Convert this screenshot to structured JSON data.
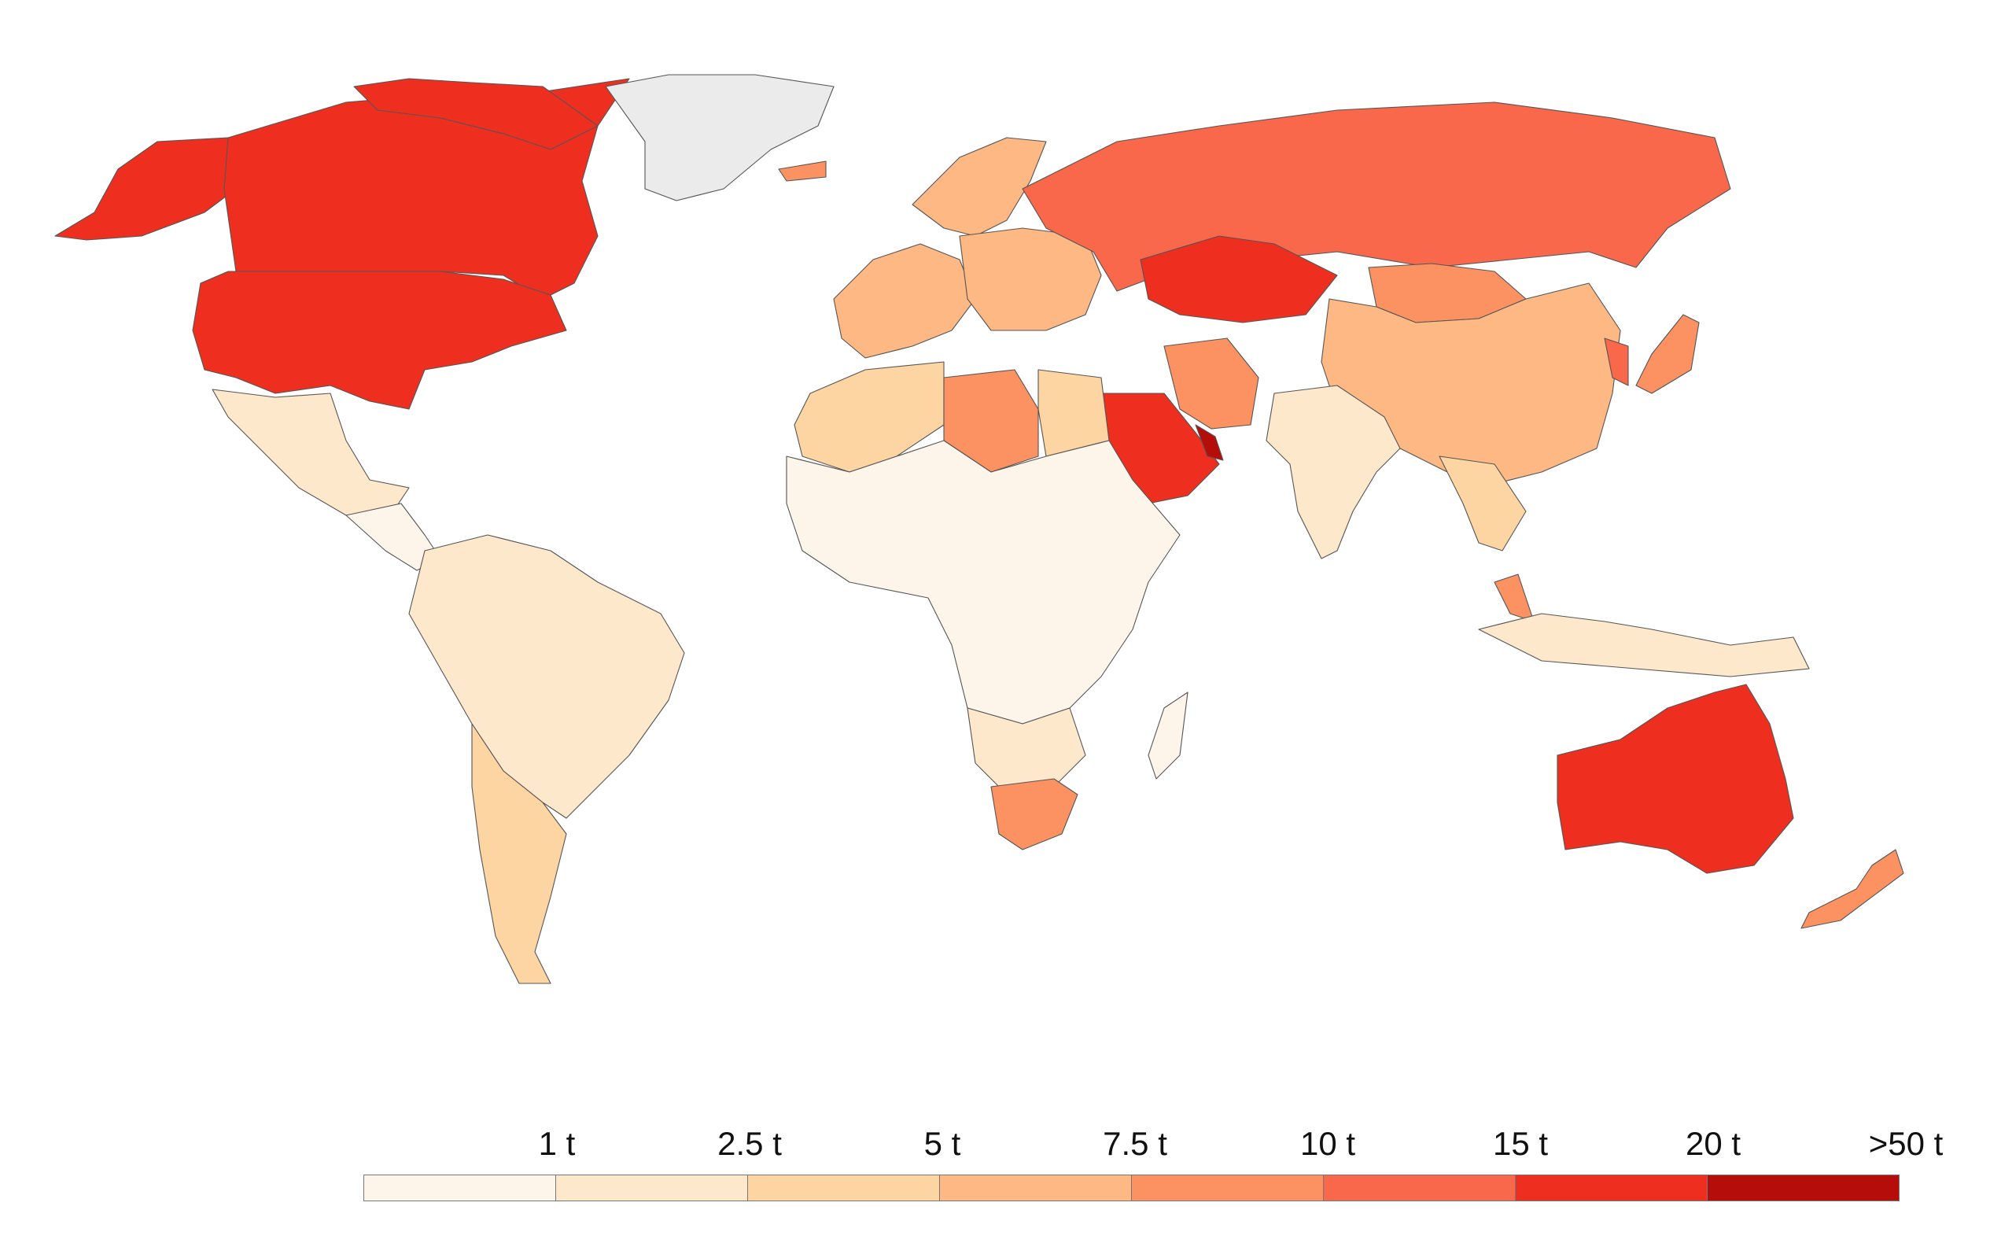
{
  "legend": {
    "labels": [
      "1 t",
      "2.5 t",
      "5 t",
      "7.5 t",
      "10 t",
      "15 t",
      "20 t",
      ">50 t"
    ],
    "colors": [
      "#fef5ea",
      "#fde8cc",
      "#fdd5a2",
      "#fdb883",
      "#fc9261",
      "#f9684a",
      "#ee2f1f",
      "#b50d0a"
    ],
    "no_data_color": "#ebebeb"
  },
  "map_regions": [
    {
      "region": "north-america-north",
      "bin": 6
    },
    {
      "region": "usa",
      "bin": 6
    },
    {
      "region": "alaska",
      "bin": 6
    },
    {
      "region": "greenland",
      "bin": -1
    },
    {
      "region": "mexico",
      "bin": 1
    },
    {
      "region": "central-america",
      "bin": 0
    },
    {
      "region": "south-america",
      "bin": 1
    },
    {
      "region": "argentina-chile",
      "bin": 2
    },
    {
      "region": "western-europe",
      "bin": 3
    },
    {
      "region": "scandinavia",
      "bin": 3
    },
    {
      "region": "eastern-europe",
      "bin": 3
    },
    {
      "region": "russia",
      "bin": 5
    },
    {
      "region": "kazakhstan",
      "bin": 6
    },
    {
      "region": "china",
      "bin": 3
    },
    {
      "region": "mongolia",
      "bin": 4
    },
    {
      "region": "india",
      "bin": 1
    },
    {
      "region": "iran",
      "bin": 4
    },
    {
      "region": "saudi-arabia",
      "bin": 6
    },
    {
      "region": "gulf",
      "bin": 7
    },
    {
      "region": "north-africa",
      "bin": 2
    },
    {
      "region": "libya",
      "bin": 4
    },
    {
      "region": "sub-saharan-africa",
      "bin": 0
    },
    {
      "region": "southern-africa",
      "bin": 1
    },
    {
      "region": "south-africa",
      "bin": 4
    },
    {
      "region": "australia",
      "bin": 6
    },
    {
      "region": "new-zealand",
      "bin": 4
    },
    {
      "region": "japan",
      "bin": 4
    },
    {
      "region": "korea",
      "bin": 5
    },
    {
      "region": "southeast-asia",
      "bin": 2
    },
    {
      "region": "indonesia",
      "bin": 1
    },
    {
      "region": "malaysia",
      "bin": 4
    },
    {
      "region": "madagascar",
      "bin": 0
    },
    {
      "region": "iceland",
      "bin": 4
    }
  ]
}
